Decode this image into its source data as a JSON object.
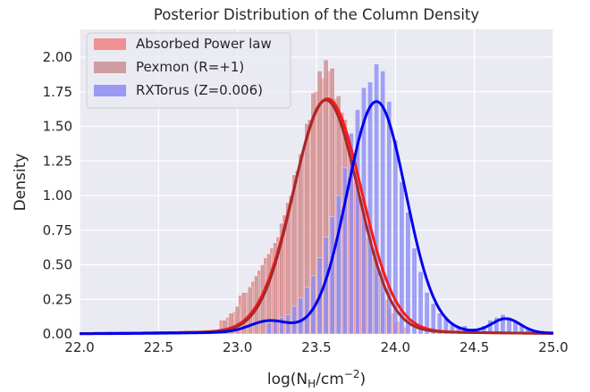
{
  "chart_data": {
    "type": "bar",
    "title": "Posterior Distribution of the Column Density",
    "xlabel": {
      "base": "log(N",
      "sub": "H",
      "mid": "/cm",
      "sup": "−2",
      "end": ")"
    },
    "ylabel": "Density",
    "xlim": [
      22.0,
      25.0
    ],
    "ylim": [
      0.0,
      2.2
    ],
    "xticks": [
      "22.0",
      "22.5",
      "23.0",
      "23.5",
      "24.0",
      "24.5",
      "25.0"
    ],
    "yticks": [
      "0.00",
      "0.25",
      "0.50",
      "0.75",
      "1.00",
      "1.25",
      "1.50",
      "1.75",
      "2.00"
    ],
    "grid": true,
    "legend_position": "top-left",
    "series": [
      {
        "name": "Absorbed Power law",
        "hist_color": "#f08080",
        "kde_color": "#ff1a1a",
        "kde": {
          "type": "gaussian",
          "mu": 23.57,
          "sigma": 0.215,
          "peak": 1.68
        },
        "bins": [
          [
            22.9,
            0.1
          ],
          [
            22.94,
            0.12
          ],
          [
            22.98,
            0.16
          ],
          [
            23.02,
            0.28
          ],
          [
            23.06,
            0.3
          ],
          [
            23.1,
            0.38
          ],
          [
            23.14,
            0.46
          ],
          [
            23.18,
            0.55
          ],
          [
            23.22,
            0.62
          ],
          [
            23.26,
            0.7
          ],
          [
            23.3,
            0.86
          ],
          [
            23.34,
            1.0
          ],
          [
            23.38,
            1.18
          ],
          [
            23.42,
            1.32
          ],
          [
            23.46,
            1.55
          ],
          [
            23.5,
            1.75
          ],
          [
            23.54,
            1.85
          ],
          [
            23.58,
            1.9
          ],
          [
            23.62,
            1.7
          ],
          [
            23.66,
            1.6
          ],
          [
            23.7,
            1.42
          ],
          [
            23.74,
            1.1
          ],
          [
            23.78,
            0.95
          ],
          [
            23.82,
            0.7
          ],
          [
            23.86,
            0.55
          ],
          [
            23.9,
            0.4
          ],
          [
            23.94,
            0.25
          ],
          [
            23.98,
            0.15
          ],
          [
            24.02,
            0.09
          ],
          [
            24.06,
            0.05
          ]
        ]
      },
      {
        "name": "Pexmon (R=+1)",
        "hist_color": "#c98f91",
        "kde_color": "#a52a2a",
        "kde": {
          "type": "gaussian",
          "mu": 23.56,
          "sigma": 0.205,
          "peak": 1.67
        },
        "bins": [
          [
            22.92,
            0.1
          ],
          [
            22.96,
            0.15
          ],
          [
            23.0,
            0.2
          ],
          [
            23.04,
            0.3
          ],
          [
            23.08,
            0.34
          ],
          [
            23.12,
            0.42
          ],
          [
            23.16,
            0.5
          ],
          [
            23.2,
            0.58
          ],
          [
            23.24,
            0.66
          ],
          [
            23.28,
            0.8
          ],
          [
            23.32,
            0.95
          ],
          [
            23.36,
            1.15
          ],
          [
            23.4,
            1.3
          ],
          [
            23.44,
            1.52
          ],
          [
            23.48,
            1.74
          ],
          [
            23.52,
            1.9
          ],
          [
            23.56,
            1.98
          ],
          [
            23.6,
            1.92
          ],
          [
            23.64,
            1.72
          ],
          [
            23.68,
            1.55
          ],
          [
            23.72,
            1.3
          ],
          [
            23.76,
            1.05
          ],
          [
            23.8,
            0.8
          ],
          [
            23.84,
            0.62
          ],
          [
            23.88,
            0.44
          ],
          [
            23.92,
            0.3
          ],
          [
            23.96,
            0.18
          ],
          [
            24.0,
            0.08
          ]
        ]
      },
      {
        "name": "RXTorus (Z=0.006)",
        "hist_color": "#8c8cf5",
        "kde_color": "#0000ee",
        "kde": {
          "type": "mixture",
          "components": [
            {
              "mu": 23.88,
              "sigma": 0.185,
              "peak": 1.66
            },
            {
              "mu": 24.7,
              "sigma": 0.09,
              "peak": 0.1
            },
            {
              "mu": 23.2,
              "sigma": 0.12,
              "peak": 0.08
            }
          ]
        },
        "bins": [
          [
            23.2,
            0.08
          ],
          [
            23.24,
            0.1
          ],
          [
            23.28,
            0.12
          ],
          [
            23.32,
            0.14
          ],
          [
            23.36,
            0.2
          ],
          [
            23.4,
            0.26
          ],
          [
            23.44,
            0.34
          ],
          [
            23.48,
            0.42
          ],
          [
            23.52,
            0.55
          ],
          [
            23.56,
            0.7
          ],
          [
            23.6,
            0.85
          ],
          [
            23.64,
            1.0
          ],
          [
            23.68,
            1.2
          ],
          [
            23.72,
            1.45
          ],
          [
            23.76,
            1.62
          ],
          [
            23.8,
            1.78
          ],
          [
            23.84,
            1.82
          ],
          [
            23.88,
            1.95
          ],
          [
            23.92,
            1.9
          ],
          [
            23.96,
            1.68
          ],
          [
            24.0,
            1.4
          ],
          [
            24.04,
            1.1
          ],
          [
            24.08,
            0.88
          ],
          [
            24.12,
            0.62
          ],
          [
            24.16,
            0.45
          ],
          [
            24.2,
            0.3
          ],
          [
            24.24,
            0.22
          ],
          [
            24.28,
            0.15
          ],
          [
            24.32,
            0.12
          ],
          [
            24.36,
            0.08
          ],
          [
            24.4,
            0.05
          ],
          [
            24.44,
            0.06
          ],
          [
            24.48,
            0.04
          ],
          [
            24.52,
            0.03
          ],
          [
            24.56,
            0.06
          ],
          [
            24.6,
            0.1
          ],
          [
            24.64,
            0.12
          ],
          [
            24.68,
            0.14
          ],
          [
            24.72,
            0.12
          ],
          [
            24.76,
            0.09
          ],
          [
            24.8,
            0.06
          ],
          [
            24.84,
            0.04
          ],
          [
            24.88,
            0.03
          ],
          [
            24.92,
            0.02
          ]
        ]
      }
    ]
  }
}
